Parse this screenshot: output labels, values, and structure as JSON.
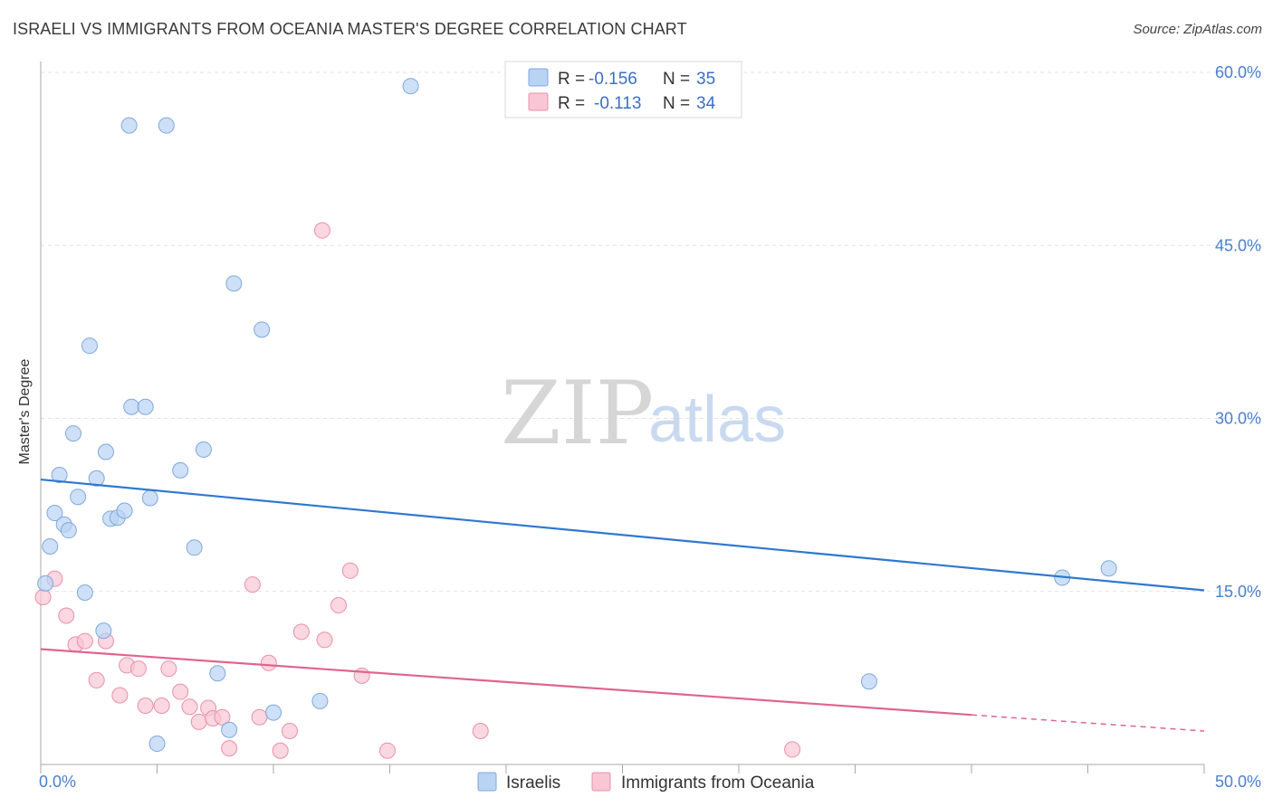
{
  "header": {
    "title": "ISRAELI VS IMMIGRANTS FROM OCEANIA MASTER'S DEGREE CORRELATION CHART",
    "source": "Source: ZipAtlas.com"
  },
  "watermark": {
    "zip": "ZIP",
    "atlas": "atlas"
  },
  "colors": {
    "blue_fill": "#b9d3f3",
    "blue_stroke": "#7fa8dc",
    "blue_line": "#2f78d0",
    "pink_fill": "#f8c6d4",
    "pink_stroke": "#e990ab",
    "pink_line": "#e0648f",
    "axis_text": "#4a7fd0",
    "grid": "#e2e2e2"
  },
  "legend": {
    "rows": [
      {
        "r_label": "R =",
        "r_value": "-0.156",
        "n_label": "N =",
        "n_value": "35"
      },
      {
        "r_label": "R =",
        "r_value": "-0.113",
        "n_label": "N =",
        "n_value": "34"
      }
    ]
  },
  "chart_data": {
    "type": "scatter",
    "title": "ISRAELI VS IMMIGRANTS FROM OCEANIA MASTER'S DEGREE CORRELATION CHART",
    "xlabel": "",
    "ylabel": "Master's Degree",
    "xlim": [
      0,
      50
    ],
    "ylim": [
      0,
      60
    ],
    "x_tick_labels": [
      "0.0%",
      "50.0%"
    ],
    "y_ticks": [
      15,
      30,
      45,
      60
    ],
    "y_tick_labels": [
      "15.0%",
      "30.0%",
      "45.0%",
      "60.0%"
    ],
    "grid": true,
    "legend_position": "top-center",
    "series": [
      {
        "name": "Israelis",
        "r": -0.156,
        "n": 35,
        "trend": {
          "x": [
            0,
            50
          ],
          "y": [
            24.7,
            15.1
          ]
        },
        "points": [
          [
            0.2,
            15.7
          ],
          [
            0.4,
            18.9
          ],
          [
            0.6,
            21.8
          ],
          [
            0.8,
            25.1
          ],
          [
            1.0,
            20.8
          ],
          [
            1.2,
            20.3
          ],
          [
            1.4,
            28.7
          ],
          [
            1.6,
            23.2
          ],
          [
            1.9,
            14.9
          ],
          [
            2.1,
            36.3
          ],
          [
            2.4,
            24.8
          ],
          [
            2.7,
            11.6
          ],
          [
            2.8,
            27.1
          ],
          [
            3.0,
            21.3
          ],
          [
            3.3,
            21.4
          ],
          [
            3.6,
            22.0
          ],
          [
            3.8,
            55.4
          ],
          [
            3.9,
            31.0
          ],
          [
            4.5,
            31.0
          ],
          [
            4.7,
            23.1
          ],
          [
            5.0,
            1.8
          ],
          [
            5.4,
            55.4
          ],
          [
            6.0,
            25.5
          ],
          [
            6.6,
            18.8
          ],
          [
            7.0,
            27.3
          ],
          [
            7.6,
            7.9
          ],
          [
            8.1,
            3.0
          ],
          [
            8.3,
            41.7
          ],
          [
            9.5,
            37.7
          ],
          [
            10.0,
            4.5
          ],
          [
            12.0,
            5.5
          ],
          [
            15.9,
            58.8
          ],
          [
            35.6,
            7.2
          ],
          [
            43.9,
            16.2
          ],
          [
            45.9,
            17.0
          ]
        ]
      },
      {
        "name": "Immigrants from Oceania",
        "r": -0.113,
        "n": 34,
        "trend": {
          "x": [
            0,
            40
          ],
          "y": [
            10.0,
            4.3
          ]
        },
        "dashed_extension": {
          "x": [
            40,
            50
          ],
          "y": [
            4.3,
            2.9
          ]
        },
        "points": [
          [
            0.1,
            14.5
          ],
          [
            0.6,
            16.1
          ],
          [
            1.1,
            12.9
          ],
          [
            1.5,
            10.4
          ],
          [
            1.9,
            10.7
          ],
          [
            2.4,
            7.3
          ],
          [
            2.8,
            10.7
          ],
          [
            3.4,
            6.0
          ],
          [
            3.7,
            8.6
          ],
          [
            4.2,
            8.3
          ],
          [
            4.5,
            5.1
          ],
          [
            5.2,
            5.1
          ],
          [
            5.5,
            8.3
          ],
          [
            6.0,
            6.3
          ],
          [
            6.4,
            5.0
          ],
          [
            6.8,
            3.7
          ],
          [
            7.2,
            4.9
          ],
          [
            7.4,
            4.0
          ],
          [
            7.8,
            4.1
          ],
          [
            8.1,
            1.4
          ],
          [
            9.1,
            15.6
          ],
          [
            9.4,
            4.1
          ],
          [
            9.8,
            8.8
          ],
          [
            10.3,
            1.2
          ],
          [
            10.7,
            2.9
          ],
          [
            11.2,
            11.5
          ],
          [
            12.1,
            46.3
          ],
          [
            12.2,
            10.8
          ],
          [
            12.8,
            13.8
          ],
          [
            13.3,
            16.8
          ],
          [
            13.8,
            7.7
          ],
          [
            14.9,
            1.2
          ],
          [
            18.9,
            2.9
          ],
          [
            32.3,
            1.3
          ]
        ]
      }
    ]
  },
  "bottom_legend": {
    "items": [
      {
        "label": "Israelis"
      },
      {
        "label": "Immigrants from Oceania"
      }
    ]
  }
}
